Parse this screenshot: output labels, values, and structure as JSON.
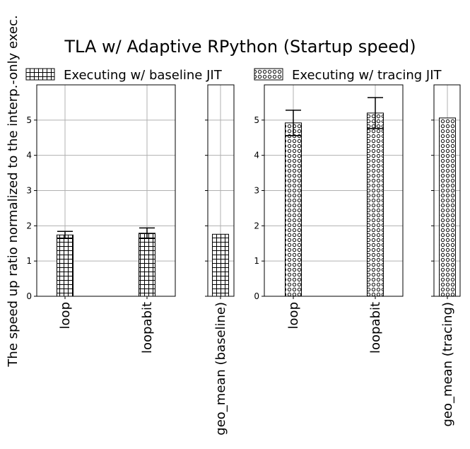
{
  "chart_data": {
    "type": "bar",
    "title": "TLA w/ Adaptive RPython (Startup speed)",
    "ylabel": "The speed up ratio normalized to the interp.-only exec.",
    "ylim": [
      0,
      6
    ],
    "yticks": [
      0,
      1,
      2,
      3,
      4,
      5
    ],
    "grid": true,
    "legend_position": "top",
    "legend": [
      {
        "label": "Executing w/ baseline JIT",
        "pattern": "grid"
      },
      {
        "label": "Executing w/ tracing JIT",
        "pattern": "circles"
      }
    ],
    "panels": [
      {
        "pattern": "grid",
        "categories": [
          "loop",
          "loopabit"
        ],
        "values": [
          1.74,
          1.79
        ],
        "errors": [
          0.1,
          0.15
        ]
      },
      {
        "pattern": "grid",
        "categories": [
          "geo_mean (baseline)"
        ],
        "values": [
          1.76
        ],
        "errors": [
          null
        ]
      },
      {
        "pattern": "circles",
        "categories": [
          "loop",
          "loopabit"
        ],
        "values": [
          4.92,
          5.2
        ],
        "errors": [
          0.36,
          0.44
        ]
      },
      {
        "pattern": "circles",
        "categories": [
          "geo_mean (tracing)"
        ],
        "values": [
          5.06
        ],
        "errors": [
          null
        ]
      }
    ]
  }
}
